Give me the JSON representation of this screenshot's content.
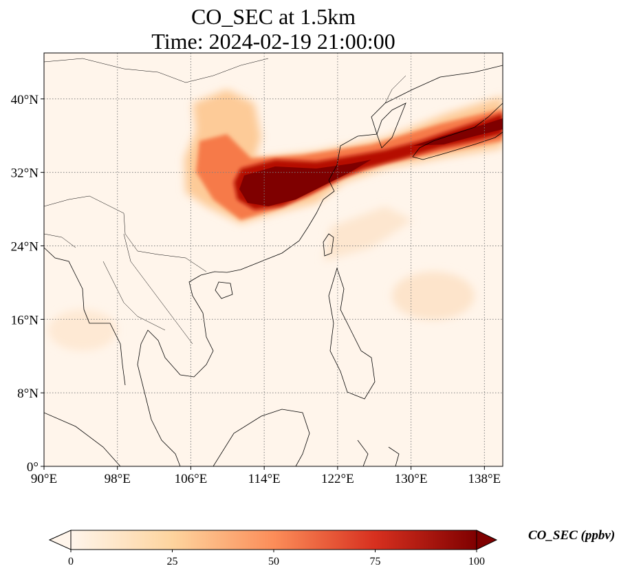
{
  "title": {
    "line1": "CO_SEC at 1.5km",
    "line2": "Time: 2024-02-19 21:00:00"
  },
  "map": {
    "lon_range": [
      90,
      140
    ],
    "lat_range": [
      0,
      45
    ],
    "lon_ticks": [
      {
        "value": 90,
        "label": "90°E"
      },
      {
        "value": 98,
        "label": "98°E"
      },
      {
        "value": 106,
        "label": "106°E"
      },
      {
        "value": 114,
        "label": "114°E"
      },
      {
        "value": 122,
        "label": "122°E"
      },
      {
        "value": 130,
        "label": "130°E"
      },
      {
        "value": 138,
        "label": "138°E"
      }
    ],
    "lat_ticks": [
      {
        "value": 0,
        "label": "0°"
      },
      {
        "value": 8,
        "label": "8°N"
      },
      {
        "value": 16,
        "label": "16°N"
      },
      {
        "value": 24,
        "label": "24°N"
      },
      {
        "value": 32,
        "label": "32°N"
      },
      {
        "value": 40,
        "label": "40°N"
      }
    ],
    "grid": true,
    "field_background_color": "#fff5eb",
    "coastline_color": "#000000",
    "gridline_color": "#7f7f7f"
  },
  "colorbar": {
    "label": "CO_SEC (ppbv)",
    "colormap": "OrRd",
    "range": [
      0,
      100
    ],
    "extend": "both",
    "ticks": [
      {
        "value": 0,
        "label": "0"
      },
      {
        "value": 25,
        "label": "25"
      },
      {
        "value": 50,
        "label": "50"
      },
      {
        "value": 75,
        "label": "75"
      },
      {
        "value": 100,
        "label": "100"
      }
    ],
    "stops": [
      {
        "value": 0,
        "color": "#fff5eb"
      },
      {
        "value": 25,
        "color": "#fdd49e"
      },
      {
        "value": 50,
        "color": "#fc8d59"
      },
      {
        "value": 75,
        "color": "#d7301f"
      },
      {
        "value": 100,
        "color": "#7f0000"
      }
    ]
  }
}
